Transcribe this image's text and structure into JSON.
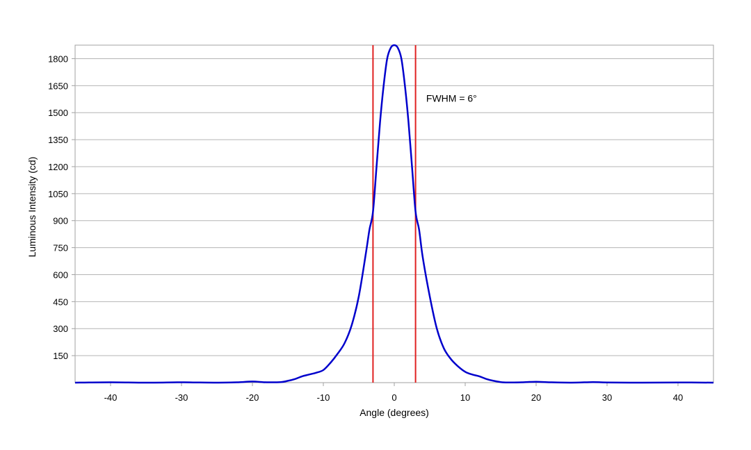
{
  "chart_data": {
    "type": "line",
    "title": "",
    "xlabel": "Angle (degrees)",
    "ylabel": "Luminous Intensity (cd)",
    "xlim": [
      -45,
      45
    ],
    "ylim": [
      0,
      1875
    ],
    "xticks": [
      -40,
      -30,
      -20,
      -10,
      0,
      10,
      20,
      30,
      40
    ],
    "yticks": [
      150,
      300,
      450,
      600,
      750,
      900,
      1050,
      1200,
      1350,
      1500,
      1650,
      1800
    ],
    "grid": "horizontal",
    "legend": "none",
    "series": [
      {
        "color": "#0000cc",
        "x": [
          -45,
          -40,
          -35,
          -30,
          -28,
          -25,
          -22,
          -20,
          -18,
          -16,
          -15,
          -14,
          -13,
          -12,
          -11,
          -10,
          -9,
          -8,
          -7,
          -6,
          -5,
          -4,
          -3.5,
          -3,
          -2.5,
          -2,
          -1.5,
          -1,
          -0.5,
          0,
          0.5,
          1,
          1.5,
          2,
          2.5,
          3,
          3.5,
          4,
          5,
          6,
          7,
          8,
          9,
          10,
          11,
          12,
          13,
          14,
          15,
          16,
          18,
          20,
          22,
          25,
          28,
          30,
          35,
          40,
          45
        ],
        "y": [
          0,
          2,
          0,
          2,
          1,
          0,
          2,
          6,
          2,
          3,
          10,
          20,
          35,
          45,
          55,
          70,
          110,
          160,
          220,
          320,
          480,
          720,
          850,
          950,
          1200,
          1450,
          1650,
          1800,
          1860,
          1875,
          1860,
          1800,
          1650,
          1450,
          1200,
          950,
          850,
          700,
          480,
          300,
          190,
          130,
          90,
          60,
          45,
          35,
          20,
          10,
          3,
          1,
          2,
          5,
          2,
          0,
          3,
          1,
          0,
          1,
          0
        ]
      }
    ],
    "reference_lines": [
      {
        "axis": "x",
        "value": -3,
        "color": "#e02020"
      },
      {
        "axis": "x",
        "value": 3,
        "color": "#e02020"
      }
    ],
    "annotations": [
      {
        "text": "FWHM = 6°",
        "x": 4.5,
        "y": 1560
      }
    ]
  }
}
